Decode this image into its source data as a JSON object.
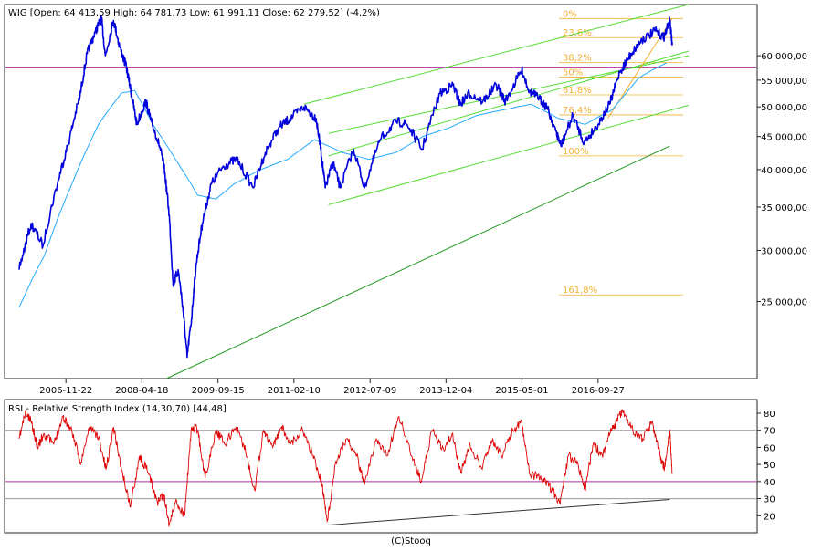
{
  "header": {
    "text": "WIG [Open: 64 413,59  High: 64 781,73  Low: 61 991,11  Close: 62 279,52] (-4,2%)"
  },
  "rsi": {
    "header": "RSI - Relative Strength Index (14,30,70) [44,48]"
  },
  "footer": {
    "text": "(C)Stooq"
  },
  "colors": {
    "price_line": "#0000dd",
    "moving_average": "#22aaff",
    "channel": "#55dd33",
    "support": "#229922",
    "fibonacci": "#f2b134",
    "horizontal_level": "#b02aa0",
    "rsi_line": "#dd0000",
    "rsi_trend": "#333333"
  },
  "chart_data": [
    {
      "type": "line",
      "title": "WIG",
      "scale": "log",
      "ylim": [
        19000,
        72000
      ],
      "x_ticks": [
        "2006-11-22",
        "2008-04-18",
        "2009-09-15",
        "2011-02-10",
        "2012-07-09",
        "2013-12-04",
        "2015-05-01",
        "2016-09-27"
      ],
      "y_ticks": [
        "60 000,00",
        "55 000,00",
        "50 000,00",
        "45 000,00",
        "40 000,00",
        "35 000,00",
        "30 000,00",
        "25 000,00"
      ],
      "y_tick_values": [
        60000,
        55000,
        50000,
        45000,
        40000,
        35000,
        30000,
        25000
      ],
      "fibonacci": [
        {
          "label": "0%",
          "value": 68500
        },
        {
          "label": "23,6%",
          "value": 64000
        },
        {
          "label": "38,2%",
          "value": 58600
        },
        {
          "label": "50%",
          "value": 55600
        },
        {
          "label": "61,8%",
          "value": 52200
        },
        {
          "label": "76,4%",
          "value": 48600
        },
        {
          "label": "100%",
          "value": 42000
        },
        {
          "label": "161,8%",
          "value": 25600
        }
      ],
      "horizontal_level": 57600,
      "series": [
        {
          "values": [
            [
              "2006-01-10",
              28000
            ],
            [
              "2006-04-01",
              33000
            ],
            [
              "2006-06-20",
              30500
            ],
            [
              "2006-10-01",
              38500
            ],
            [
              "2006-12-10",
              44000
            ],
            [
              "2007-02-25",
              52000
            ],
            [
              "2007-04-15",
              60500
            ],
            [
              "2007-06-10",
              65500
            ],
            [
              "2007-07-20",
              68500
            ],
            [
              "2007-08-15",
              60000
            ],
            [
              "2007-10-10",
              68000
            ],
            [
              "2007-11-20",
              62000
            ],
            [
              "2008-01-05",
              57500
            ],
            [
              "2008-02-10",
              52000
            ],
            [
              "2008-03-15",
              47000
            ],
            [
              "2008-05-15",
              51000
            ],
            [
              "2008-06-20",
              47500
            ],
            [
              "2008-08-10",
              44000
            ],
            [
              "2008-09-15",
              40500
            ],
            [
              "2008-10-20",
              34000
            ],
            [
              "2008-11-15",
              26500
            ],
            [
              "2008-12-20",
              28000
            ],
            [
              "2009-01-20",
              24500
            ],
            [
              "2009-02-18",
              20500
            ],
            [
              "2009-03-20",
              23500
            ],
            [
              "2009-04-20",
              28500
            ],
            [
              "2009-06-01",
              33000
            ],
            [
              "2009-08-01",
              38000
            ],
            [
              "2009-10-20",
              40500
            ],
            [
              "2010-01-20",
              41500
            ],
            [
              "2010-05-10",
              37500
            ],
            [
              "2010-08-01",
              42500
            ],
            [
              "2010-11-01",
              46500
            ],
            [
              "2011-01-15",
              48000
            ],
            [
              "2011-04-20",
              50000
            ],
            [
              "2011-07-10",
              48000
            ],
            [
              "2011-08-10",
              43000
            ],
            [
              "2011-09-10",
              37500
            ],
            [
              "2011-11-01",
              41000
            ],
            [
              "2011-12-20",
              37500
            ],
            [
              "2012-03-20",
              43000
            ],
            [
              "2012-06-01",
              37500
            ],
            [
              "2012-09-15",
              44500
            ],
            [
              "2012-12-31",
              47500
            ],
            [
              "2013-03-15",
              47000
            ],
            [
              "2013-06-25",
              43000
            ],
            [
              "2013-10-25",
              52500
            ],
            [
              "2014-01-20",
              54000
            ],
            [
              "2014-03-10",
              50500
            ],
            [
              "2014-05-10",
              52500
            ],
            [
              "2014-08-10",
              51000
            ],
            [
              "2014-11-10",
              54000
            ],
            [
              "2015-01-10",
              51000
            ],
            [
              "2015-04-30",
              57000
            ],
            [
              "2015-06-20",
              53000
            ],
            [
              "2015-08-25",
              51500
            ],
            [
              "2015-10-15",
              50000
            ],
            [
              "2015-12-15",
              46000
            ],
            [
              "2016-01-20",
              43500
            ],
            [
              "2016-04-10",
              48500
            ],
            [
              "2016-06-25",
              44000
            ],
            [
              "2016-09-27",
              47000
            ],
            [
              "2016-12-15",
              50500
            ],
            [
              "2017-02-20",
              56500
            ],
            [
              "2017-05-10",
              60500
            ],
            [
              "2017-07-20",
              63500
            ],
            [
              "2017-10-20",
              65500
            ],
            [
              "2017-12-15",
              64000
            ],
            [
              "2018-01-25",
              68000
            ],
            [
              "2018-02-10",
              62300
            ]
          ]
        },
        {
          "name": "",
          "values": [
            [
              "2006-01-10",
              24500
            ],
            [
              "2006-07-01",
              29500
            ],
            [
              "2007-01-01",
              38000
            ],
            [
              "2007-07-01",
              47000
            ],
            [
              "2007-12-01",
              52500
            ],
            [
              "2008-03-01",
              53000
            ],
            [
              "2008-07-01",
              47000
            ],
            [
              "2008-12-01",
              41500
            ],
            [
              "2009-05-01",
              36500
            ],
            [
              "2009-09-01",
              36000
            ],
            [
              "2010-01-01",
              38000
            ],
            [
              "2010-07-01",
              40000
            ],
            [
              "2011-01-01",
              41500
            ],
            [
              "2011-07-01",
              44500
            ],
            [
              "2012-01-01",
              42500
            ],
            [
              "2012-07-01",
              41500
            ],
            [
              "2013-01-01",
              42500
            ],
            [
              "2013-07-01",
              45000
            ],
            [
              "2014-01-01",
              46500
            ],
            [
              "2014-07-01",
              48500
            ],
            [
              "2015-01-01",
              49500
            ],
            [
              "2015-07-01",
              50500
            ],
            [
              "2016-01-01",
              48000
            ],
            [
              "2016-07-01",
              47000
            ],
            [
              "2017-01-01",
              49500
            ],
            [
              "2017-07-01",
              55500
            ],
            [
              "2018-01-01",
              58500
            ]
          ]
        }
      ],
      "trendlines": [
        {
          "kind": "channel",
          "from": [
            "2011-04-20",
            50500
          ],
          "to": [
            "2018-06-01",
            72000
          ]
        },
        {
          "kind": "channel",
          "from": [
            "2011-10-01",
            42000
          ],
          "to": [
            "2018-06-01",
            61000
          ]
        },
        {
          "kind": "channel",
          "from": [
            "2011-10-01",
            45500
          ],
          "to": [
            "2018-06-01",
            60000
          ]
        },
        {
          "kind": "channel",
          "from": [
            "2011-10-01",
            35300
          ],
          "to": [
            "2018-06-01",
            50300
          ]
        },
        {
          "kind": "support",
          "from": [
            "2008-10-01",
            19000
          ],
          "to": [
            "2018-01-25",
            43500
          ]
        },
        {
          "kind": "fibonacci",
          "from": [
            "2016-12-01",
            48000
          ],
          "to": [
            "2018-02-10",
            68500
          ]
        }
      ]
    },
    {
      "type": "line",
      "title": "RSI - Relative Strength Index (14,30,70) [44,48]",
      "ylim": [
        10,
        88
      ],
      "y_ticks": [
        80,
        70,
        60,
        50,
        40,
        30,
        20
      ],
      "reference_lines": [
        70,
        40,
        30
      ],
      "series": [
        {
          "values": [
            [
              "2006-01-10",
              65
            ],
            [
              "2006-02-20",
              80
            ],
            [
              "2006-04-01",
              75
            ],
            [
              "2006-05-15",
              60
            ],
            [
              "2006-06-25",
              68
            ],
            [
              "2006-09-01",
              62
            ],
            [
              "2006-11-01",
              78
            ],
            [
              "2007-01-01",
              70
            ],
            [
              "2007-03-01",
              50
            ],
            [
              "2007-05-01",
              72
            ],
            [
              "2007-07-01",
              66
            ],
            [
              "2007-08-20",
              47
            ],
            [
              "2007-10-10",
              72
            ],
            [
              "2007-12-01",
              48
            ],
            [
              "2008-02-01",
              25
            ],
            [
              "2008-04-01",
              55
            ],
            [
              "2008-06-01",
              45
            ],
            [
              "2008-08-01",
              28
            ],
            [
              "2008-09-15",
              32
            ],
            [
              "2008-10-20",
              15
            ],
            [
              "2008-12-01",
              28
            ],
            [
              "2009-02-01",
              20
            ],
            [
              "2009-03-20",
              72
            ],
            [
              "2009-05-01",
              70
            ],
            [
              "2009-06-20",
              42
            ],
            [
              "2009-09-01",
              70
            ],
            [
              "2009-11-01",
              62
            ],
            [
              "2010-01-15",
              72
            ],
            [
              "2010-03-20",
              58
            ],
            [
              "2010-05-20",
              35
            ],
            [
              "2010-07-20",
              70
            ],
            [
              "2010-09-20",
              60
            ],
            [
              "2010-11-20",
              72
            ],
            [
              "2011-01-20",
              62
            ],
            [
              "2011-04-10",
              70
            ],
            [
              "2011-06-20",
              55
            ],
            [
              "2011-08-15",
              40
            ],
            [
              "2011-09-25",
              17
            ],
            [
              "2011-11-20",
              52
            ],
            [
              "2012-02-01",
              65
            ],
            [
              "2012-04-10",
              55
            ],
            [
              "2012-06-01",
              38
            ],
            [
              "2012-08-20",
              65
            ],
            [
              "2012-11-01",
              55
            ],
            [
              "2013-01-20",
              78
            ],
            [
              "2013-04-15",
              55
            ],
            [
              "2013-06-20",
              40
            ],
            [
              "2013-09-01",
              70
            ],
            [
              "2013-11-20",
              58
            ],
            [
              "2014-01-15",
              68
            ],
            [
              "2014-03-15",
              45
            ],
            [
              "2014-05-15",
              62
            ],
            [
              "2014-08-01",
              48
            ],
            [
              "2014-10-15",
              65
            ],
            [
              "2014-12-15",
              55
            ],
            [
              "2015-03-01",
              70
            ],
            [
              "2015-05-01",
              74
            ],
            [
              "2015-06-20",
              45
            ],
            [
              "2015-09-01",
              42
            ],
            [
              "2015-11-01",
              38
            ],
            [
              "2016-01-15",
              27
            ],
            [
              "2016-03-10",
              55
            ],
            [
              "2016-05-15",
              50
            ],
            [
              "2016-07-01",
              35
            ],
            [
              "2016-08-25",
              62
            ],
            [
              "2016-10-25",
              55
            ],
            [
              "2016-12-15",
              68
            ],
            [
              "2017-02-01",
              75
            ],
            [
              "2017-03-10",
              82
            ],
            [
              "2017-05-20",
              70
            ],
            [
              "2017-07-25",
              65
            ],
            [
              "2017-09-25",
              75
            ],
            [
              "2017-11-20",
              55
            ],
            [
              "2017-12-20",
              48
            ],
            [
              "2018-01-25",
              70
            ],
            [
              "2018-02-10",
              44.5
            ]
          ]
        }
      ],
      "trendlines": [
        {
          "kind": "rsi-trend",
          "from": [
            "2011-09-25",
            14.5
          ],
          "to": [
            "2018-01-25",
            29.5
          ]
        }
      ]
    }
  ]
}
